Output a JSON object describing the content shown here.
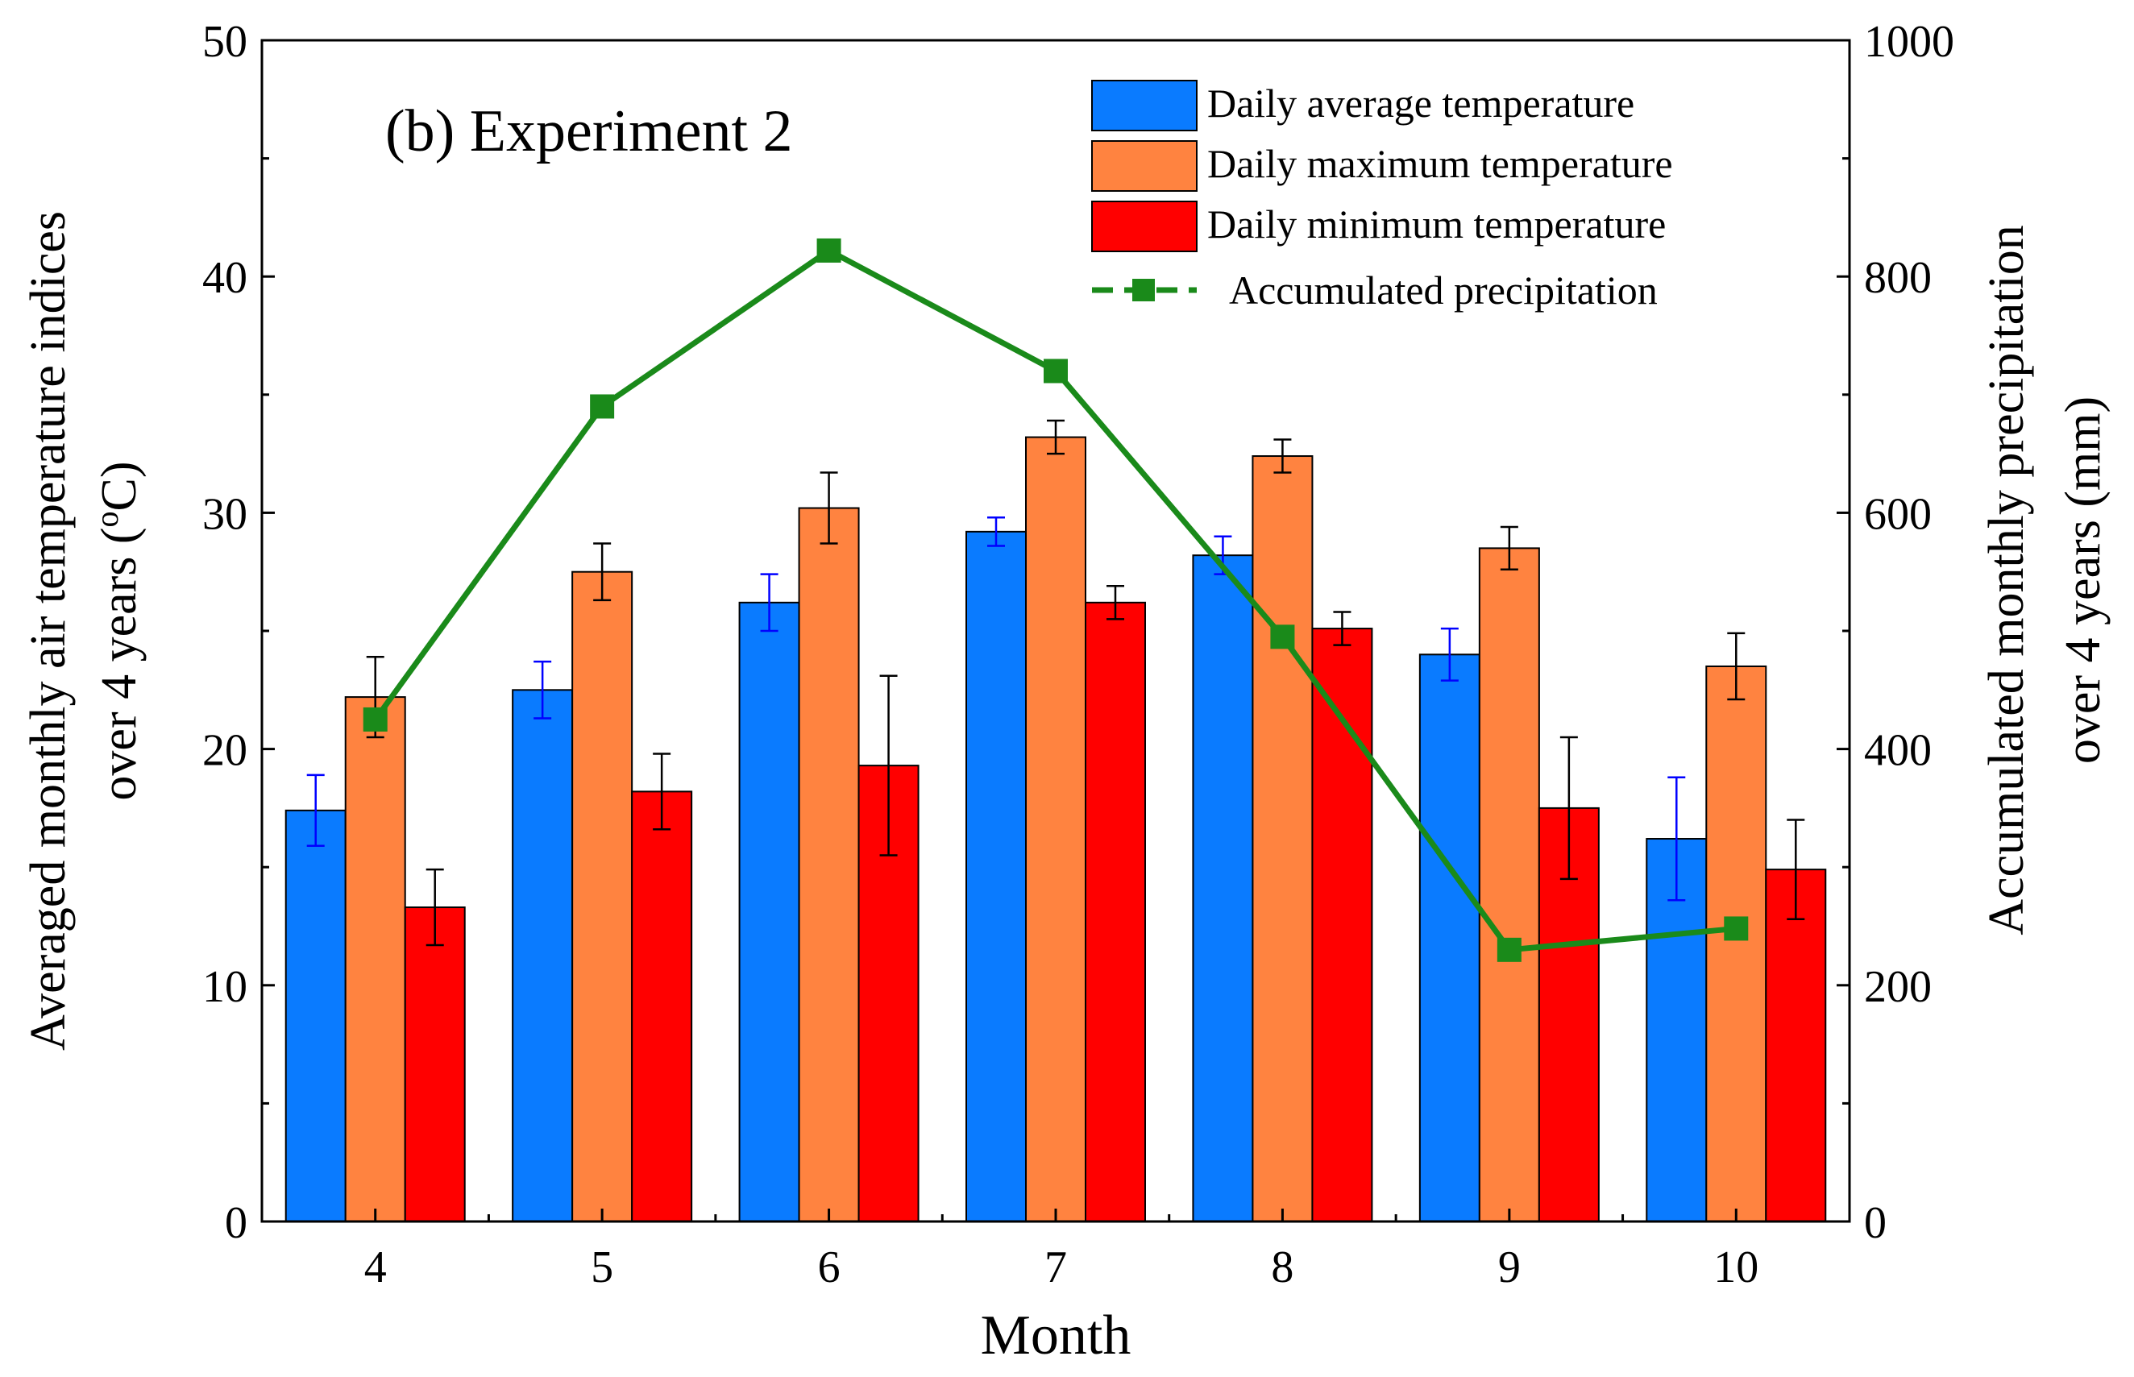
{
  "chart_data": {
    "type": "bar",
    "annotation": "(b) Experiment 2",
    "xlabel": "Month",
    "ylabel_left": [
      "Averaged monthly air temperature indices",
      "over 4 years (",
      "o",
      "C)"
    ],
    "ylabel_right": [
      "Accumulated monthly precipitation",
      "over 4 years (mm)"
    ],
    "categories": [
      "4",
      "5",
      "6",
      "7",
      "8",
      "9",
      "10"
    ],
    "y_left": {
      "lim": [
        0,
        50
      ],
      "ticks": [
        0,
        10,
        20,
        30,
        40,
        50
      ]
    },
    "y_right": {
      "lim": [
        0,
        1000
      ],
      "ticks": [
        0,
        200,
        400,
        600,
        800,
        1000
      ]
    },
    "bar_series": [
      {
        "name": "Daily average temperature",
        "color": "#0a7bff",
        "error_color": "#0000ff",
        "values": [
          17.4,
          22.5,
          26.2,
          29.2,
          28.2,
          24.0,
          16.2
        ],
        "errors": [
          1.5,
          1.2,
          1.2,
          0.6,
          0.8,
          1.1,
          2.6
        ]
      },
      {
        "name": "Daily maximum temperature",
        "color": "#ff8340",
        "error_color": "#000000",
        "values": [
          22.2,
          27.5,
          30.2,
          33.2,
          32.4,
          28.5,
          23.5
        ],
        "errors": [
          1.7,
          1.2,
          1.5,
          0.7,
          0.7,
          0.9,
          1.4
        ]
      },
      {
        "name": "Daily minimum temperature",
        "color": "#ff0000",
        "error_color": "#000000",
        "values": [
          13.3,
          18.2,
          19.3,
          26.2,
          25.1,
          17.5,
          14.9
        ],
        "errors": [
          1.6,
          1.6,
          3.8,
          0.7,
          0.7,
          3.0,
          2.1
        ]
      }
    ],
    "line_series": {
      "name": "Accumulated precipitation",
      "axis": "right",
      "color": "#1a8a1a",
      "values": [
        425,
        690,
        822,
        720,
        495,
        230,
        248
      ]
    },
    "legend_position": "top-right"
  }
}
